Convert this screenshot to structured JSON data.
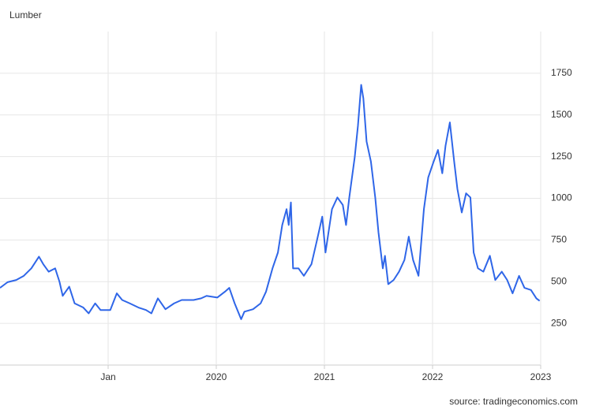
{
  "chart_data": {
    "type": "line",
    "title": "Lumber",
    "source": "source: tradingeconomics.com",
    "color": "#2f66e8",
    "grid": true,
    "xlim": [
      2018,
      2023
    ],
    "xticks": [
      {
        "value": 2019,
        "label": "Jan"
      },
      2020,
      2021,
      2022,
      2023
    ],
    "ylim": [
      0,
      2000
    ],
    "yticks": [
      250,
      500,
      750,
      1000,
      1250,
      1500,
      1750
    ],
    "x": [
      2018.0,
      2018.07,
      2018.15,
      2018.22,
      2018.29,
      2018.36,
      2018.4,
      2018.45,
      2018.51,
      2018.55,
      2018.58,
      2018.64,
      2018.69,
      2018.77,
      2018.82,
      2018.88,
      2018.93,
      2019.02,
      2019.08,
      2019.13,
      2019.2,
      2019.28,
      2019.35,
      2019.4,
      2019.46,
      2019.53,
      2019.61,
      2019.68,
      2019.79,
      2019.86,
      2019.91,
      2020.01,
      2020.08,
      2020.12,
      2020.17,
      2020.23,
      2020.26,
      2020.34,
      2020.41,
      2020.46,
      2020.52,
      2020.57,
      2020.61,
      2020.65,
      2020.67,
      2020.69,
      2020.71,
      2020.76,
      2020.81,
      2020.88,
      2020.93,
      2020.98,
      2021.01,
      2021.07,
      2021.12,
      2021.17,
      2021.2,
      2021.23,
      2021.28,
      2021.31,
      2021.34,
      2021.36,
      2021.39,
      2021.43,
      2021.47,
      2021.5,
      2021.54,
      2021.56,
      2021.59,
      2021.64,
      2021.69,
      2021.74,
      2021.78,
      2021.82,
      2021.87,
      2021.92,
      2021.96,
      2022.01,
      2022.05,
      2022.09,
      2022.12,
      2022.16,
      2022.2,
      2022.23,
      2022.27,
      2022.31,
      2022.35,
      2022.38,
      2022.42,
      2022.47,
      2022.53,
      2022.58,
      2022.64,
      2022.69,
      2022.74,
      2022.8,
      2022.85,
      2022.91,
      2022.96,
      2022.99
    ],
    "values": [
      463,
      497,
      510,
      535,
      580,
      650,
      605,
      560,
      580,
      500,
      415,
      470,
      370,
      345,
      310,
      370,
      330,
      330,
      430,
      390,
      370,
      345,
      330,
      310,
      400,
      335,
      370,
      390,
      390,
      400,
      415,
      405,
      440,
      463,
      370,
      275,
      320,
      335,
      370,
      440,
      580,
      675,
      840,
      935,
      840,
      975,
      580,
      580,
      535,
      605,
      745,
      890,
      675,
      935,
      1005,
      960,
      840,
      1005,
      1245,
      1435,
      1680,
      1600,
      1340,
      1220,
      1005,
      795,
      580,
      655,
      485,
      510,
      560,
      630,
      770,
      630,
      535,
      935,
      1125,
      1220,
      1290,
      1150,
      1315,
      1455,
      1220,
      1055,
      915,
      1030,
      1005,
      675,
      580,
      560,
      655,
      510,
      560,
      510,
      430,
      535,
      463,
      450,
      400,
      385
    ]
  }
}
